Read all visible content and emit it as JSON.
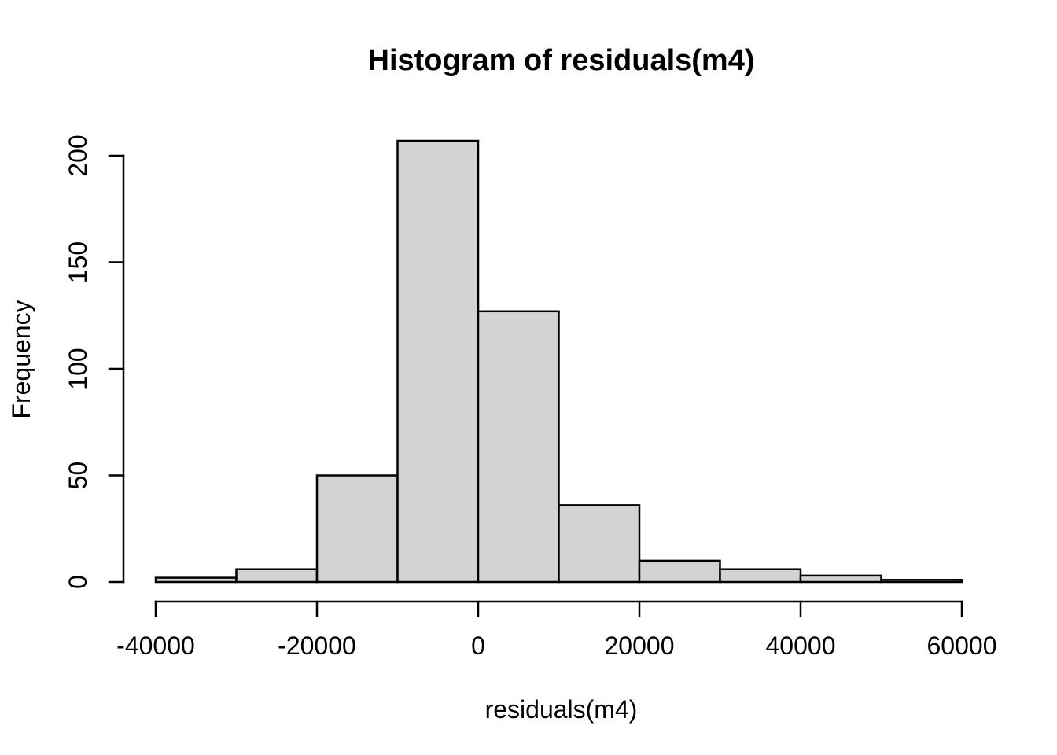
{
  "chart_data": {
    "type": "bar",
    "chart_kind": "histogram",
    "title": "Histogram of residuals(m4)",
    "xlabel": "residuals(m4)",
    "ylabel": "Frequency",
    "breaks": [
      -40000,
      -30000,
      -20000,
      -10000,
      0,
      10000,
      20000,
      30000,
      40000,
      50000,
      60000
    ],
    "counts": [
      2,
      6,
      50,
      207,
      127,
      36,
      10,
      6,
      3,
      1
    ],
    "x_ticks": [
      -40000,
      -20000,
      0,
      20000,
      40000,
      60000
    ],
    "y_ticks": [
      0,
      50,
      100,
      150,
      200
    ],
    "xlim": [
      -40000,
      60000
    ],
    "ylim": [
      0,
      207
    ],
    "grid": false,
    "legend": "none",
    "bar_fill": "#d3d3d3",
    "bar_stroke": "#000000",
    "axis_color": "#000000",
    "text_color": "#000000",
    "background": "#ffffff"
  }
}
